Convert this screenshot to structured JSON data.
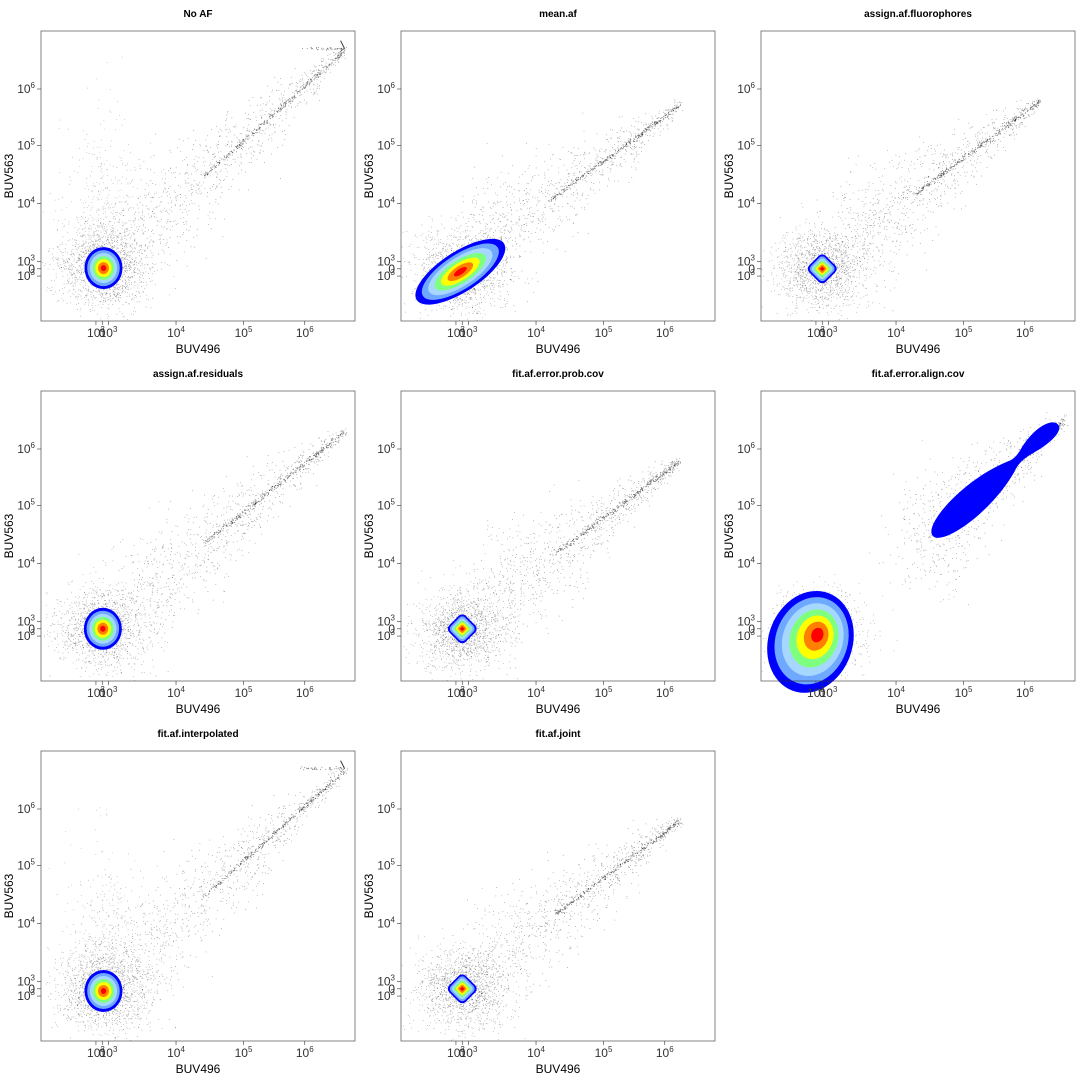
{
  "figure": {
    "layout": "3x3 grid of scatter plots with density contours, 8 panels"
  },
  "chart_data": [
    {
      "type": "scatter",
      "title": "No AF",
      "xlabel": "BUV496",
      "ylabel": "BUV563",
      "xscale": "biexponential",
      "yscale": "biexponential",
      "xlim": [
        -3000,
        4000000
      ],
      "ylim": [
        -4000,
        4000000
      ],
      "xticks": [
        "10³",
        "0",
        "10³",
        "10⁴",
        "10⁵",
        "10⁶"
      ],
      "yticks": [
        "10³",
        "0",
        "10³",
        "10⁴",
        "10⁵",
        "10⁶"
      ],
      "grid": false,
      "cluster": {
        "center": [
          200,
          100
        ],
        "shape": "round",
        "density_colors": [
          "#0000ff",
          "#6fa8ff",
          "#a6d8ff",
          "#7fff7f",
          "#ffff00",
          "#ff8000",
          "#ff0000"
        ]
      },
      "diagonal_trend": {
        "from": [
          2000,
          2000
        ],
        "to": [
          3000000,
          2500000
        ],
        "saturation_tail": true
      },
      "left_spread": true
    },
    {
      "type": "scatter",
      "title": "mean.af",
      "xlabel": "BUV496",
      "ylabel": "BUV563",
      "xscale": "biexponential",
      "yscale": "biexponential",
      "xlim": [
        -3000,
        4000000
      ],
      "ylim": [
        -4000,
        4000000
      ],
      "xticks": [
        "10³",
        "0",
        "10³",
        "10⁴",
        "10⁵",
        "10⁶"
      ],
      "yticks": [
        "10³",
        "0",
        "10³",
        "10⁴",
        "10⁵",
        "10⁶"
      ],
      "grid": false,
      "cluster": {
        "center": [
          -300,
          -400
        ],
        "shape": "elongated diagonal",
        "density_colors": [
          "#0000ff",
          "#6fa8ff",
          "#a6d8ff",
          "#7fff7f",
          "#ffff00",
          "#ff8000",
          "#ff0000"
        ]
      },
      "diagonal_trend": {
        "from": [
          1500,
          1500
        ],
        "to": [
          1500000,
          500000
        ],
        "saturation_tail": false
      },
      "left_spread": false
    },
    {
      "type": "scatter",
      "title": "assign.af.fluorophores",
      "xlabel": "BUV496",
      "ylabel": "BUV563",
      "xscale": "biexponential",
      "yscale": "biexponential",
      "xlim": [
        -3000,
        4000000
      ],
      "ylim": [
        -4000,
        4000000
      ],
      "xticks": [
        "10³",
        "0",
        "10³",
        "10⁴",
        "10⁵",
        "10⁶"
      ],
      "yticks": [
        "10³",
        "0",
        "10³",
        "10⁴",
        "10⁵",
        "10⁶"
      ],
      "grid": false,
      "cluster": {
        "center": [
          0,
          0
        ],
        "shape": "compact diamond",
        "density_colors": [
          "#0000ff",
          "#6fa8ff",
          "#a6d8ff",
          "#7fff7f",
          "#ffff00",
          "#ff8000",
          "#ff0000"
        ]
      },
      "diagonal_trend": {
        "from": [
          2000,
          2000
        ],
        "to": [
          1500000,
          600000
        ],
        "saturation_tail": false
      },
      "left_spread": false
    },
    {
      "type": "scatter",
      "title": "assign.af.residuals",
      "xlabel": "BUV496",
      "ylabel": "BUV563",
      "xscale": "biexponential",
      "yscale": "biexponential",
      "xlim": [
        -3000,
        4000000
      ],
      "ylim": [
        -4000,
        4000000
      ],
      "xticks": [
        "10³",
        "0",
        "10³",
        "10⁴",
        "10⁵",
        "10⁶"
      ],
      "yticks": [
        "10³",
        "0",
        "10³",
        "10⁴",
        "10⁵",
        "10⁶"
      ],
      "grid": false,
      "cluster": {
        "center": [
          100,
          0
        ],
        "shape": "round",
        "density_colors": [
          "#0000ff",
          "#6fa8ff",
          "#a6d8ff",
          "#7fff7f",
          "#ffff00",
          "#ff8000",
          "#ff0000"
        ]
      },
      "diagonal_trend": {
        "from": [
          2000,
          2000
        ],
        "to": [
          3000000,
          1500000
        ],
        "saturation_tail": false
      },
      "left_spread": false
    },
    {
      "type": "scatter",
      "title": "fit.af.error.prob.cov",
      "xlabel": "BUV496",
      "ylabel": "BUV563",
      "xscale": "biexponential",
      "yscale": "biexponential",
      "xlim": [
        -3000,
        4000000
      ],
      "ylim": [
        -4000,
        4000000
      ],
      "xticks": [
        "10³",
        "0",
        "10³",
        "10⁴",
        "10⁵",
        "10⁶"
      ],
      "yticks": [
        "10³",
        "0",
        "10³",
        "10⁴",
        "10⁵",
        "10⁶"
      ],
      "grid": false,
      "cluster": {
        "center": [
          0,
          0
        ],
        "shape": "compact diamond",
        "density_colors": [
          "#0000ff",
          "#6fa8ff",
          "#a6d8ff",
          "#7fff7f",
          "#ffff00",
          "#ff8000",
          "#ff0000"
        ]
      },
      "diagonal_trend": {
        "from": [
          2000,
          2000
        ],
        "to": [
          1500000,
          600000
        ],
        "saturation_tail": false
      },
      "left_spread": false
    },
    {
      "type": "scatter",
      "title": "fit.af.error.align.cov",
      "xlabel": "BUV496",
      "ylabel": "BUV563",
      "xscale": "biexponential",
      "yscale": "biexponential",
      "xlim": [
        -3000,
        4000000
      ],
      "ylim": [
        -4000,
        4000000
      ],
      "xticks": [
        "10³",
        "0",
        "10³",
        "10⁴",
        "10⁵",
        "10⁶"
      ],
      "yticks": [
        "10³",
        "0",
        "10³",
        "10⁴",
        "10⁵",
        "10⁶"
      ],
      "grid": false,
      "cluster": {
        "center": [
          -600,
          -700
        ],
        "shape": "large lower-left",
        "density_colors": [
          "#0000ff",
          "#6fa8ff",
          "#a6d8ff",
          "#7fff7f",
          "#ffff00",
          "#ff8000",
          "#ff0000"
        ]
      },
      "diagonal_trend": {
        "from": [
          20000,
          20000
        ],
        "to": [
          3000000,
          2000000
        ],
        "saturation_tail": false
      },
      "secondary_cluster": {
        "from": [
          35000,
          30000
        ],
        "to": [
          2500000,
          1800000
        ],
        "color": "#0000ff"
      },
      "left_spread": false
    },
    {
      "type": "scatter",
      "title": "fit.af.interpolated",
      "xlabel": "BUV496",
      "ylabel": "BUV563",
      "xscale": "biexponential",
      "yscale": "biexponential",
      "xlim": [
        -3000,
        4000000
      ],
      "ylim": [
        -4000,
        4000000
      ],
      "xticks": [
        "10³",
        "0",
        "10³",
        "10⁴",
        "10⁵",
        "10⁶"
      ],
      "yticks": [
        "10³",
        "0",
        "10³",
        "10⁴",
        "10⁵",
        "10⁶"
      ],
      "grid": false,
      "cluster": {
        "center": [
          200,
          -300
        ],
        "shape": "round",
        "density_colors": [
          "#0000ff",
          "#6fa8ff",
          "#a6d8ff",
          "#7fff7f",
          "#ffff00",
          "#ff8000",
          "#ff0000"
        ]
      },
      "diagonal_trend": {
        "from": [
          2000,
          2000
        ],
        "to": [
          3000000,
          2500000
        ],
        "saturation_tail": true
      },
      "left_spread": true
    },
    {
      "type": "scatter",
      "title": "fit.af.joint",
      "xlabel": "BUV496",
      "ylabel": "BUV563",
      "xscale": "biexponential",
      "yscale": "biexponential",
      "xlim": [
        -3000,
        4000000
      ],
      "ylim": [
        -4000,
        4000000
      ],
      "xticks": [
        "10³",
        "0",
        "10³",
        "10⁴",
        "10⁵",
        "10⁶"
      ],
      "yticks": [
        "10³",
        "0",
        "10³",
        "10⁴",
        "10⁵",
        "10⁶"
      ],
      "grid": false,
      "cluster": {
        "center": [
          0,
          0
        ],
        "shape": "compact diamond",
        "density_colors": [
          "#0000ff",
          "#6fa8ff",
          "#a6d8ff",
          "#7fff7f",
          "#ffff00",
          "#ff8000",
          "#ff0000"
        ]
      },
      "diagonal_trend": {
        "from": [
          2000,
          2000
        ],
        "to": [
          1500000,
          600000
        ],
        "saturation_tail": false
      },
      "left_spread": false
    }
  ]
}
